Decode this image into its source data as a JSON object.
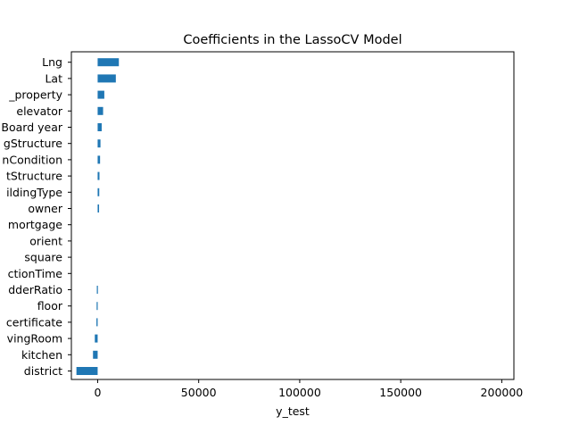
{
  "chart_data": {
    "type": "bar",
    "orientation": "horizontal",
    "title": "Coefficients in the LassoCV Model",
    "xlabel": "y_test",
    "ylabel": "",
    "xlim": [
      -13000,
      206000
    ],
    "xticks": [
      0,
      50000,
      100000,
      150000,
      200000
    ],
    "xtick_labels": [
      "0",
      "50000",
      "100000",
      "150000",
      "200000"
    ],
    "grid": false,
    "bar_color": "#1f77b4",
    "categories": [
      "district",
      "kitchen",
      "livingRoom",
      "certificate",
      "floor",
      "ladderRatio",
      "constructionTime",
      "square",
      "orient",
      "mortgage",
      "owner",
      "buildingType",
      "constructionStructure",
      "renovationCondition",
      "buildingStructure",
      "Board year",
      "elevator",
      "property",
      "Lat",
      "Lng"
    ],
    "tick_labels_visible": [
      "district",
      "kitchen",
      "vingRoom",
      "certificate",
      "floor",
      "dderRatio",
      "ctionTime",
      "square",
      "orient",
      "mortgage",
      "owner",
      "ildingType",
      "tStructure",
      "nCondition",
      "gStructure",
      "Board year",
      "elevator",
      "_property",
      "Lat",
      "Lng"
    ],
    "values": [
      -10500,
      -2300,
      -1400,
      -600,
      -500,
      -400,
      0,
      0,
      0,
      0,
      700,
      800,
      900,
      1200,
      1400,
      2000,
      2700,
      3300,
      9000,
      10500
    ]
  }
}
